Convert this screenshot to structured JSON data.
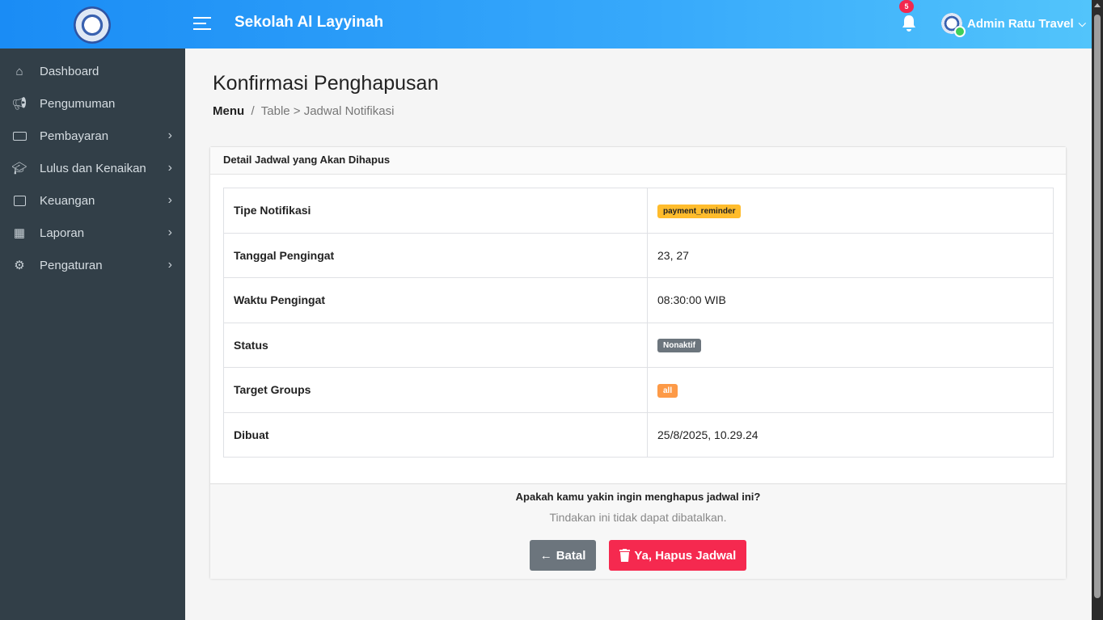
{
  "header": {
    "brand": "Sekolah Al Layyinah",
    "notification_count": "5",
    "user_name": "Admin Ratu Travel",
    "color_start": "#1a8cf5",
    "color_end": "#52c4fb"
  },
  "sidebar": {
    "items": [
      {
        "label": "Dashboard",
        "icon": "home-icon",
        "has_submenu": false
      },
      {
        "label": "Pengumuman",
        "icon": "megaphone-icon",
        "has_submenu": false
      },
      {
        "label": "Pembayaran",
        "icon": "money-icon",
        "has_submenu": true
      },
      {
        "label": "Lulus dan Kenaikan",
        "icon": "graduation-cap-icon",
        "has_submenu": true
      },
      {
        "label": "Keuangan",
        "icon": "wallet-icon",
        "has_submenu": true
      },
      {
        "label": "Laporan",
        "icon": "calendar-icon",
        "has_submenu": true
      },
      {
        "label": "Pengaturan",
        "icon": "gear-icon",
        "has_submenu": true
      }
    ]
  },
  "page": {
    "title": "Konfirmasi Penghapusan",
    "breadcrumb": {
      "root": "Menu",
      "sep": "/",
      "path": "Table > Jadwal Notifikasi"
    }
  },
  "card": {
    "title": "Detail Jadwal yang Akan Dihapus",
    "rows": [
      {
        "label": "Tipe Notifikasi",
        "value": "payment_reminder",
        "badge_color": "#ffbc2c"
      },
      {
        "label": "Tanggal Pengingat",
        "value": "23, 27"
      },
      {
        "label": "Waktu Pengingat",
        "value": "08:30:00 WIB"
      },
      {
        "label": "Status",
        "value": "Nonaktif",
        "badge_color": "#6c757d"
      },
      {
        "label": "Target Groups",
        "value": "all",
        "badge_color": "#fd9a47"
      },
      {
        "label": "Dibuat",
        "value": "25/8/2025, 10.29.24"
      }
    ]
  },
  "confirm": {
    "question": "Apakah kamu yakin ingin menghapus jadwal ini?",
    "warning": "Tindakan ini tidak dapat dibatalkan.",
    "cancel_label": "Batal",
    "delete_label": "Ya, Hapus Jadwal",
    "cancel_color": "#6c757d",
    "delete_color": "#f5294f"
  }
}
